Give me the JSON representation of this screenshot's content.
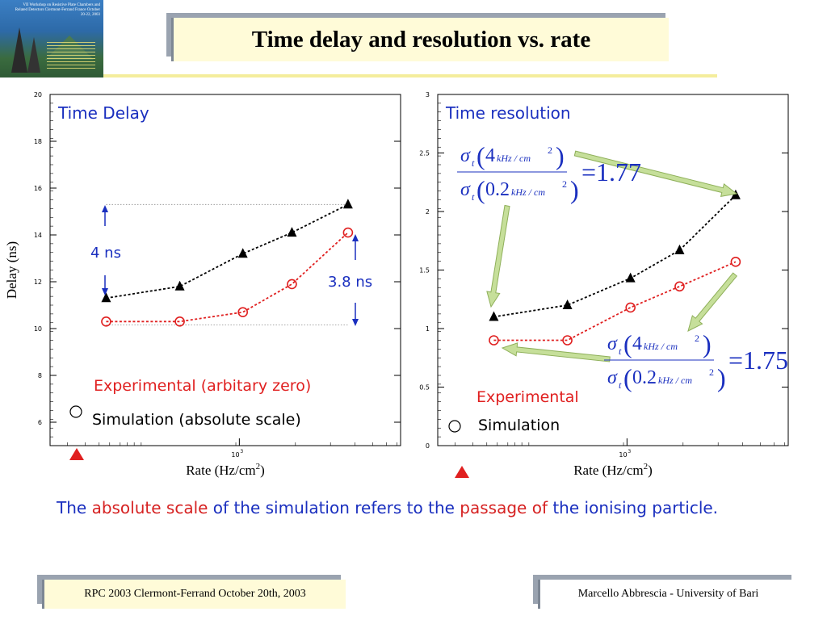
{
  "slide": {
    "title": "Time delay and resolution vs. rate",
    "logo_text": "VII Workshop on Resistive Plate Chambers and Related Detectors Clermont-Ferrand France October 20-22, 2003",
    "note_parts": [
      {
        "text": "The ",
        "color": "blue"
      },
      {
        "text": "absolute scale",
        "color": "red"
      },
      {
        "text": " of the simulation refers to the ",
        "color": "blue"
      },
      {
        "text": "passage of",
        "color": "red"
      },
      {
        "text": " the ionising particle.",
        "color": "blue"
      }
    ],
    "footer_left": "RPC 2003 Clermont-Ferrand October 20th, 2003",
    "footer_right": "Marcello Abbrescia - University of Bari"
  },
  "chart_data": [
    {
      "type": "scatter",
      "title": "Time Delay",
      "xlabel": "Rate (Hz/cm2)",
      "ylabel": "Delay (ns)",
      "x_exponent_label": "10^3",
      "ylim": [
        5,
        20
      ],
      "y_ticks": [
        "6",
        "8",
        "10",
        "12",
        "14",
        "16",
        "18",
        "20"
      ],
      "x_relative": [
        0.16,
        0.37,
        0.55,
        0.69,
        0.85
      ],
      "series": [
        {
          "name": "Experimental (arbitary zero)",
          "marker": "triangle",
          "color": "#000000",
          "values": [
            11.3,
            11.8,
            13.2,
            14.1,
            15.3
          ]
        },
        {
          "name": "Simulation (absolute scale)",
          "marker": "circle",
          "color": "#e02020",
          "values": [
            10.3,
            10.3,
            10.7,
            11.9,
            14.1
          ]
        }
      ],
      "annotations": [
        "4 ns",
        "3.8 ns"
      ]
    },
    {
      "type": "scatter",
      "title": "Time resolution",
      "xlabel": "Rate (Hz/cm2)",
      "ylabel": "",
      "x_exponent_label": "10^3",
      "ylim": [
        0,
        3
      ],
      "y_ticks": [
        "0",
        "0.5",
        "1",
        "1.5",
        "2",
        "2.5",
        "3"
      ],
      "x_relative": [
        0.16,
        0.37,
        0.55,
        0.69,
        0.85
      ],
      "series": [
        {
          "name": "Experimental",
          "marker": "triangle",
          "color": "#000000",
          "values": [
            1.1,
            1.2,
            1.43,
            1.67,
            2.14
          ]
        },
        {
          "name": "Simulation",
          "marker": "circle",
          "color": "#e02020",
          "values": [
            0.9,
            0.9,
            1.18,
            1.36,
            1.57
          ]
        }
      ],
      "formulas": [
        {
          "numerator_value": "4",
          "denominator_value": "0.2",
          "unit": "kHz / cm",
          "unit_exp": "2",
          "result": "=1.77"
        },
        {
          "numerator_value": "4",
          "denominator_value": "0.2",
          "unit": "kHz / cm",
          "unit_exp": "2",
          "result": "=1.75"
        }
      ]
    }
  ]
}
